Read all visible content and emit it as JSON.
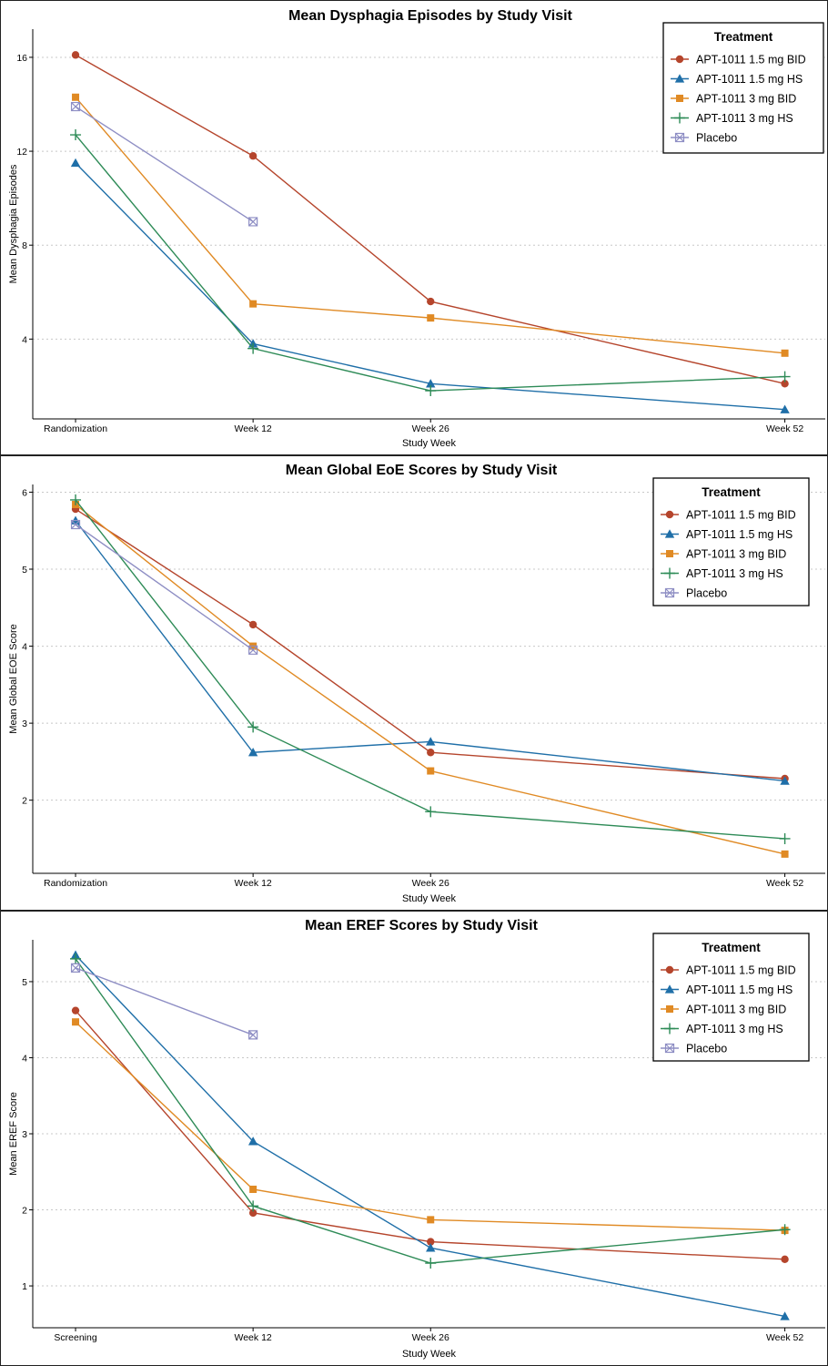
{
  "chart_data": [
    {
      "type": "line",
      "title": "Mean Dysphagia Episodes by Study Visit",
      "xlabel": "Study Week",
      "ylabel": "Mean Dysphagia Episodes",
      "categories": [
        "Randomization",
        "Week 12",
        "Week 26",
        "Week 52"
      ],
      "x": [
        0,
        12,
        26,
        52
      ],
      "ylim": [
        0.6,
        17.2
      ],
      "yticks": [
        4,
        8,
        12,
        16
      ],
      "grid": "horizontal-dotted",
      "legend_title": "Treatment",
      "legend_position": "top-right",
      "series": [
        {
          "name": "APT-1011 1.5 mg BID",
          "color": "#b5452c",
          "marker": "circle",
          "values": [
            16.1,
            11.8,
            5.6,
            2.1
          ]
        },
        {
          "name": "APT-1011 1.5 mg HS",
          "color": "#1f6fa8",
          "marker": "triangle",
          "values": [
            11.5,
            3.8,
            2.1,
            1.0
          ]
        },
        {
          "name": "APT-1011 3 mg BID",
          "color": "#e08a24",
          "marker": "square",
          "values": [
            14.3,
            5.5,
            4.9,
            3.4
          ]
        },
        {
          "name": "APT-1011 3 mg HS",
          "color": "#2e8b57",
          "marker": "plus",
          "values": [
            12.7,
            3.6,
            1.8,
            2.4
          ]
        },
        {
          "name": "Placebo",
          "color": "#8e8ec4",
          "marker": "boxx",
          "values": [
            13.9,
            9.0,
            null,
            null
          ]
        }
      ]
    },
    {
      "type": "line",
      "title": "Mean Global EoE Scores by Study Visit",
      "xlabel": "Study Week",
      "ylabel": "Mean Global EOE Score",
      "categories": [
        "Randomization",
        "Week 12",
        "Week 26",
        "Week 52"
      ],
      "x": [
        0,
        12,
        26,
        52
      ],
      "ylim": [
        1.05,
        6.1
      ],
      "yticks": [
        2,
        3,
        4,
        5,
        6
      ],
      "grid": "horizontal-dotted",
      "legend_title": "Treatment",
      "legend_position": "top-right",
      "series": [
        {
          "name": "APT-1011 1.5 mg BID",
          "color": "#b5452c",
          "marker": "circle",
          "values": [
            5.78,
            4.28,
            2.62,
            2.28
          ]
        },
        {
          "name": "APT-1011 1.5 mg HS",
          "color": "#1f6fa8",
          "marker": "triangle",
          "values": [
            5.63,
            2.62,
            2.76,
            2.25
          ]
        },
        {
          "name": "APT-1011 3 mg BID",
          "color": "#e08a24",
          "marker": "square",
          "values": [
            5.84,
            4.0,
            2.38,
            1.3
          ]
        },
        {
          "name": "APT-1011 3 mg HS",
          "color": "#2e8b57",
          "marker": "plus",
          "values": [
            5.9,
            2.95,
            1.85,
            1.5
          ]
        },
        {
          "name": "Placebo",
          "color": "#8e8ec4",
          "marker": "boxx",
          "values": [
            5.58,
            3.95,
            null,
            null
          ]
        }
      ]
    },
    {
      "type": "line",
      "title": "Mean EREF Scores by Study Visit",
      "xlabel": "Study Week",
      "ylabel": "Mean EREF Score",
      "categories": [
        "Screening",
        "Week 12",
        "Week 26",
        "Week 52"
      ],
      "x": [
        0,
        12,
        26,
        52
      ],
      "ylim": [
        0.45,
        5.55
      ],
      "yticks": [
        1,
        2,
        3,
        4,
        5
      ],
      "grid": "horizontal-dotted",
      "legend_title": "Treatment",
      "legend_position": "top-right",
      "series": [
        {
          "name": "APT-1011 1.5 mg BID",
          "color": "#b5452c",
          "marker": "circle",
          "values": [
            4.62,
            1.96,
            1.58,
            1.35
          ]
        },
        {
          "name": "APT-1011 1.5 mg HS",
          "color": "#1f6fa8",
          "marker": "triangle",
          "values": [
            5.35,
            2.9,
            1.5,
            0.6
          ]
        },
        {
          "name": "APT-1011 3 mg BID",
          "color": "#e08a24",
          "marker": "square",
          "values": [
            4.47,
            2.27,
            1.87,
            1.73
          ]
        },
        {
          "name": "APT-1011 3 mg HS",
          "color": "#2e8b57",
          "marker": "plus",
          "values": [
            5.3,
            2.05,
            1.3,
            1.74
          ]
        },
        {
          "name": "Placebo",
          "color": "#8e8ec4",
          "marker": "boxx",
          "values": [
            5.18,
            4.3,
            null,
            null
          ]
        }
      ]
    }
  ]
}
